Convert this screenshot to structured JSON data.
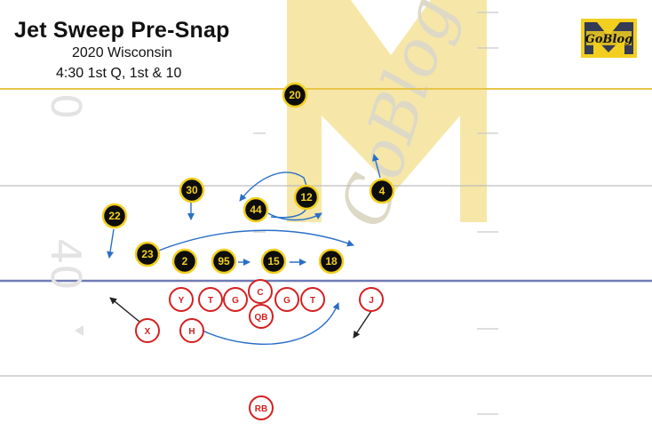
{
  "header": {
    "title": "Jet Sweep Pre-Snap",
    "subtitle_game": "2020 Wisconsin",
    "subtitle_situation": "4:30 1st Q, 1st & 10"
  },
  "logo": {
    "text": "GoBlog",
    "letter": "M"
  },
  "watermark": {
    "text": "GoBlog"
  },
  "field": {
    "yard_numbers": [
      "0",
      "40"
    ],
    "line_of_scrimmage_color": "#6f7bb5",
    "first_down_line_color": "#e8c548",
    "watermark_color": "#f6e7a8"
  },
  "defense": {
    "fill": "#0d0d0d",
    "ring": "#f2cf1f",
    "text_color": "#f2cf1f",
    "players": [
      "20",
      "30",
      "44",
      "12",
      "4",
      "22",
      "23",
      "2",
      "95",
      "15",
      "18"
    ]
  },
  "offense": {
    "fill": "#ffffff",
    "ring": "#d42020",
    "text_color": "#d42020",
    "players": [
      "Y",
      "T",
      "G",
      "C",
      "G",
      "T",
      "J",
      "QB",
      "X",
      "H",
      "RB"
    ]
  },
  "colors": {
    "defense_arrow": "#2a6fc7",
    "offense_arrow": "#222222"
  }
}
